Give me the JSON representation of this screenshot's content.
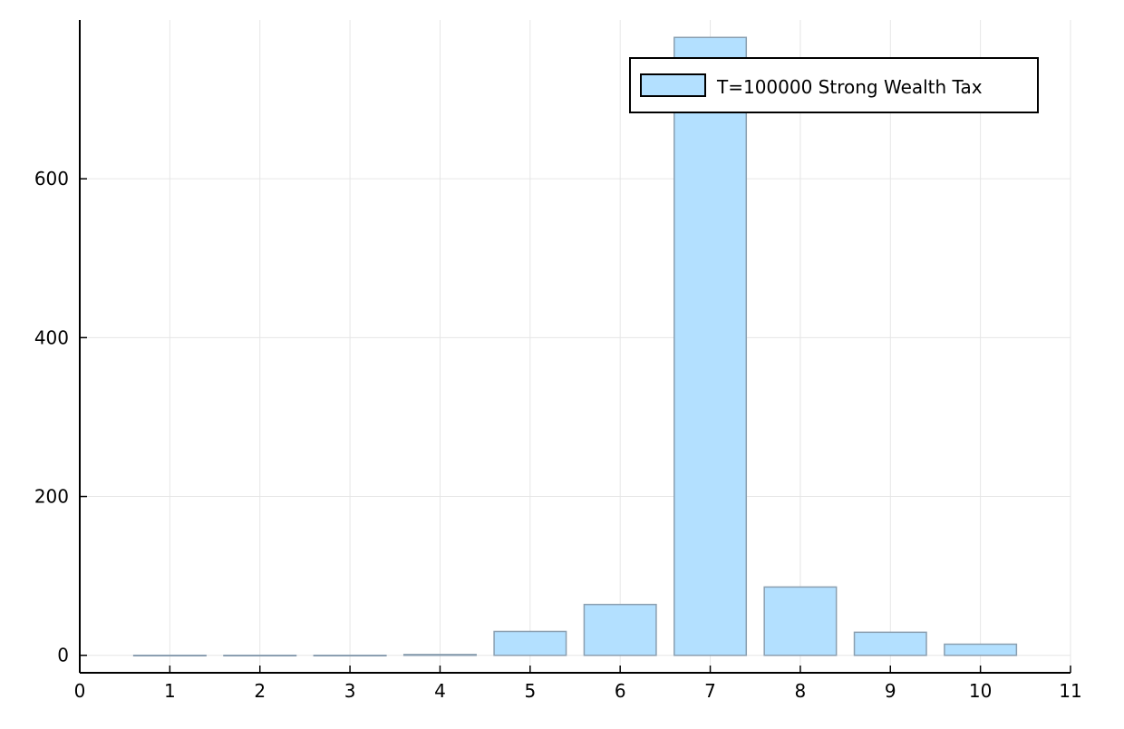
{
  "chart_data": {
    "type": "bar",
    "title": "",
    "xlabel": "",
    "ylabel": "",
    "categories": [
      1,
      2,
      3,
      4,
      5,
      6,
      7,
      8,
      9,
      10
    ],
    "series": [
      {
        "name": "T=100000    Strong Wealth Tax",
        "values": [
          0,
          0,
          0,
          1,
          30,
          64,
          778,
          86,
          29,
          14
        ],
        "color": "#b3e0ff",
        "edge_color": "#8a9fb0"
      }
    ],
    "xlim": [
      0,
      11
    ],
    "ylim": [
      -22,
      800
    ],
    "xticks": [
      "0",
      "1",
      "2",
      "3",
      "4",
      "5",
      "6",
      "7",
      "8",
      "9",
      "10",
      "11"
    ],
    "yticks": [
      "0",
      "200",
      "400",
      "600"
    ],
    "grid": true,
    "legend_position": "top-right"
  }
}
